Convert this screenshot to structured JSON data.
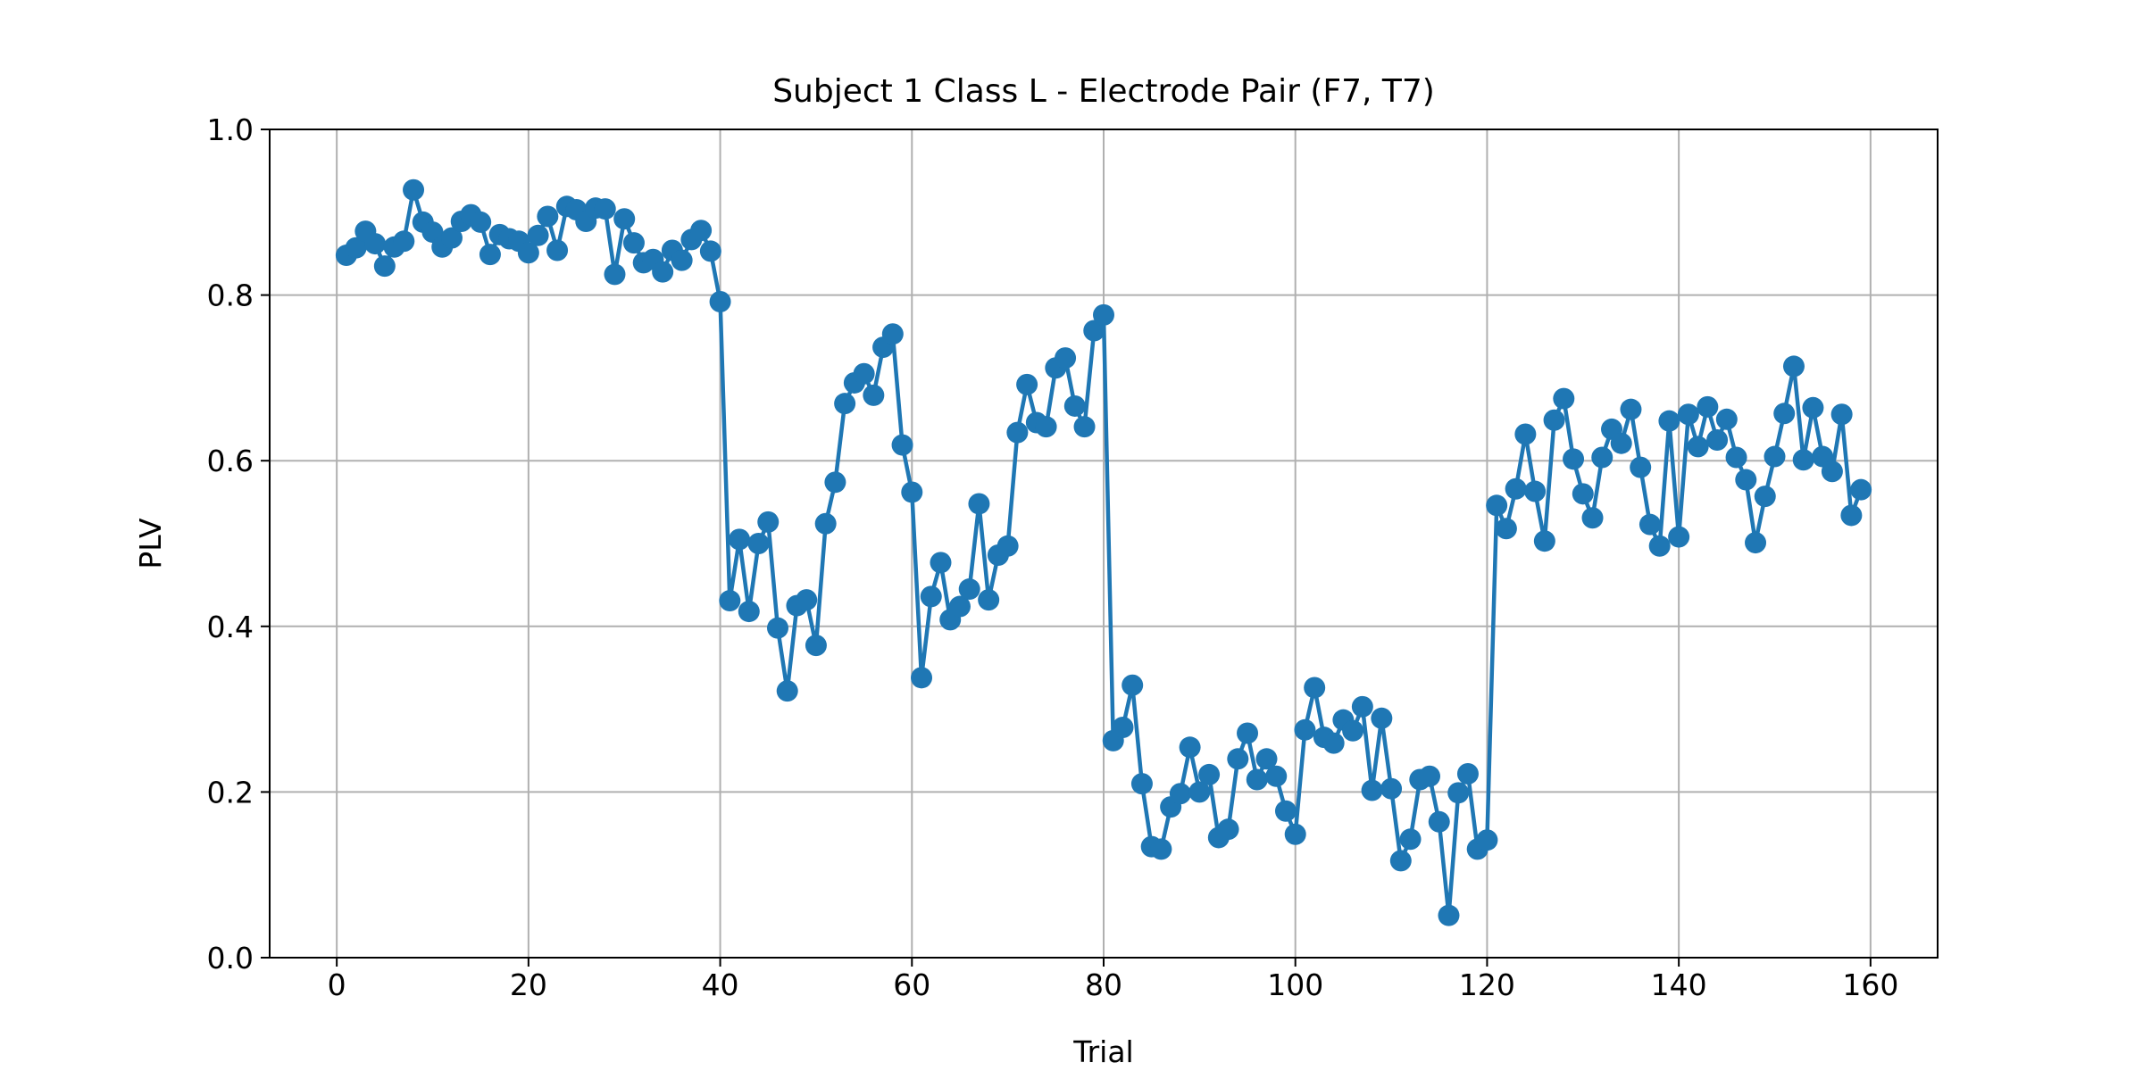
{
  "chart_data": {
    "type": "line",
    "title": "Subject 1 Class L - Electrode Pair (F7, T7)",
    "xlabel": "Trial",
    "ylabel": "PLV",
    "xlim": [
      -7,
      167
    ],
    "ylim": [
      0.0,
      1.0
    ],
    "xticks": [
      "0",
      "20",
      "40",
      "60",
      "80",
      "100",
      "120",
      "140",
      "160"
    ],
    "yticks": [
      "0.0",
      "0.2",
      "0.4",
      "0.6",
      "0.8",
      "1.0"
    ],
    "grid": true,
    "series": [
      {
        "color": "#1f77b4",
        "marker": "circle",
        "x": [
          1,
          2,
          3,
          4,
          5,
          6,
          7,
          8,
          9,
          10,
          11,
          12,
          13,
          14,
          15,
          16,
          17,
          18,
          19,
          20,
          21,
          22,
          23,
          24,
          25,
          26,
          27,
          28,
          29,
          30,
          31,
          32,
          33,
          34,
          35,
          36,
          37,
          38,
          39,
          40,
          41,
          42,
          43,
          44,
          45,
          46,
          47,
          48,
          49,
          50,
          51,
          52,
          53,
          54,
          55,
          56,
          57,
          58,
          59,
          60,
          61,
          62,
          63,
          64,
          65,
          66,
          67,
          68,
          69,
          70,
          71,
          72,
          73,
          74,
          75,
          76,
          77,
          78,
          79,
          80,
          81,
          82,
          83,
          84,
          85,
          86,
          87,
          88,
          89,
          90,
          91,
          92,
          93,
          94,
          95,
          96,
          97,
          98,
          99,
          100,
          101,
          102,
          103,
          104,
          105,
          106,
          107,
          108,
          109,
          110,
          111,
          112,
          113,
          114,
          115,
          116,
          117,
          118,
          119,
          120,
          121,
          122,
          123,
          124,
          125,
          126,
          127,
          128,
          129,
          130,
          131,
          132,
          133,
          134,
          135,
          136,
          137,
          138,
          139,
          140,
          141,
          142,
          143,
          144,
          145,
          146,
          147,
          148,
          149,
          150,
          151,
          152,
          153,
          154,
          155,
          156,
          157,
          158,
          159
        ],
        "y": [
          0.848,
          0.857,
          0.877,
          0.862,
          0.835,
          0.858,
          0.865,
          0.927,
          0.888,
          0.876,
          0.858,
          0.869,
          0.889,
          0.897,
          0.888,
          0.849,
          0.873,
          0.868,
          0.865,
          0.851,
          0.872,
          0.895,
          0.854,
          0.907,
          0.903,
          0.889,
          0.905,
          0.904,
          0.825,
          0.892,
          0.863,
          0.839,
          0.843,
          0.828,
          0.854,
          0.842,
          0.867,
          0.878,
          0.853,
          0.792,
          0.431,
          0.505,
          0.418,
          0.5,
          0.526,
          0.398,
          0.322,
          0.425,
          0.432,
          0.377,
          0.524,
          0.574,
          0.669,
          0.694,
          0.705,
          0.679,
          0.737,
          0.753,
          0.619,
          0.562,
          0.338,
          0.436,
          0.477,
          0.408,
          0.424,
          0.445,
          0.548,
          0.432,
          0.486,
          0.497,
          0.634,
          0.692,
          0.646,
          0.641,
          0.712,
          0.724,
          0.666,
          0.641,
          0.757,
          0.776,
          0.262,
          0.278,
          0.329,
          0.21,
          0.134,
          0.131,
          0.182,
          0.198,
          0.254,
          0.2,
          0.221,
          0.145,
          0.155,
          0.24,
          0.271,
          0.215,
          0.24,
          0.219,
          0.177,
          0.149,
          0.275,
          0.326,
          0.266,
          0.259,
          0.287,
          0.274,
          0.303,
          0.202,
          0.289,
          0.204,
          0.117,
          0.143,
          0.215,
          0.219,
          0.164,
          0.051,
          0.199,
          0.222,
          0.131,
          0.142,
          0.546,
          0.518,
          0.566,
          0.632,
          0.563,
          0.503,
          0.649,
          0.675,
          0.602,
          0.56,
          0.531,
          0.604,
          0.638,
          0.621,
          0.662,
          0.592,
          0.523,
          0.497,
          0.648,
          0.508,
          0.656,
          0.617,
          0.665,
          0.625,
          0.65,
          0.604,
          0.577,
          0.501,
          0.557,
          0.605,
          0.657,
          0.714,
          0.601,
          0.664,
          0.605,
          0.587,
          0.656,
          0.534,
          0.565
        ]
      }
    ]
  }
}
